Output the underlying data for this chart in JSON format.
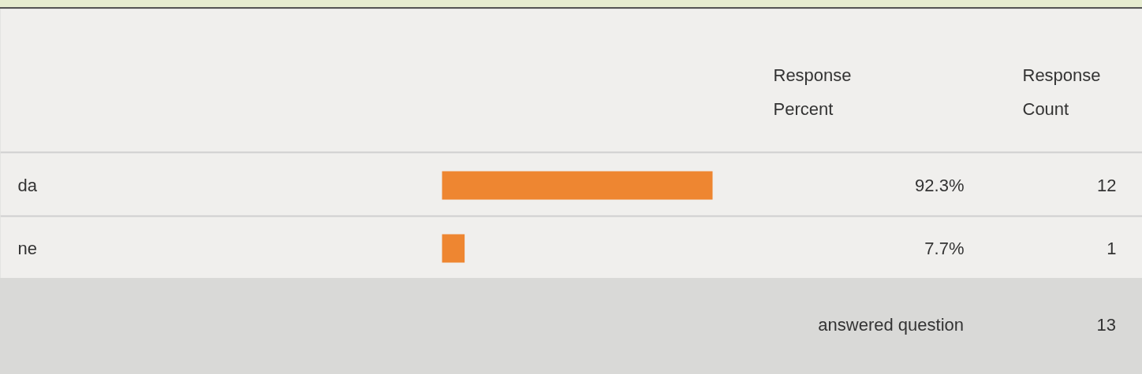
{
  "chart_data": {
    "type": "bar",
    "orientation": "horizontal",
    "categories": [
      "da",
      "ne"
    ],
    "values": [
      92.3,
      7.7
    ],
    "color": "#ee8631",
    "tick_labels": false,
    "grid": false,
    "value_labels": [
      "92.3%",
      "7.7%"
    ],
    "annotations": [
      "Response Percent",
      "Response Count",
      "12",
      "1",
      "answered question",
      "13"
    ]
  }
}
